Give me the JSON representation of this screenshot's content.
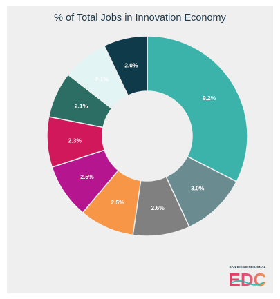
{
  "chart_data": {
    "type": "pie",
    "title": "% of Total Jobs in Innovation Economy",
    "slices": [
      {
        "label": "9.2%",
        "value": 9.2,
        "color": "#3cb3aa"
      },
      {
        "label": "3.0%",
        "value": 3.0,
        "color": "#6a8c91"
      },
      {
        "label": "2.6%",
        "value": 2.6,
        "color": "#808080"
      },
      {
        "label": "2.5%",
        "value": 2.5,
        "color": "#f79646"
      },
      {
        "label": "2.5%",
        "value": 2.5,
        "color": "#b5168f"
      },
      {
        "label": "2.3%",
        "value": 2.3,
        "color": "#d0185a"
      },
      {
        "label": "2.1%",
        "value": 2.1,
        "color": "#2c6e63"
      },
      {
        "label": "2.1%",
        "value": 2.1,
        "color": "#e2f4f4"
      },
      {
        "label": "2.0%",
        "value": 2.0,
        "color": "#0f3a4a"
      }
    ],
    "donut": true,
    "legend": "none"
  },
  "logo": {
    "small_text": "SAN DIEGO REGIONAL",
    "word": "EDC"
  }
}
